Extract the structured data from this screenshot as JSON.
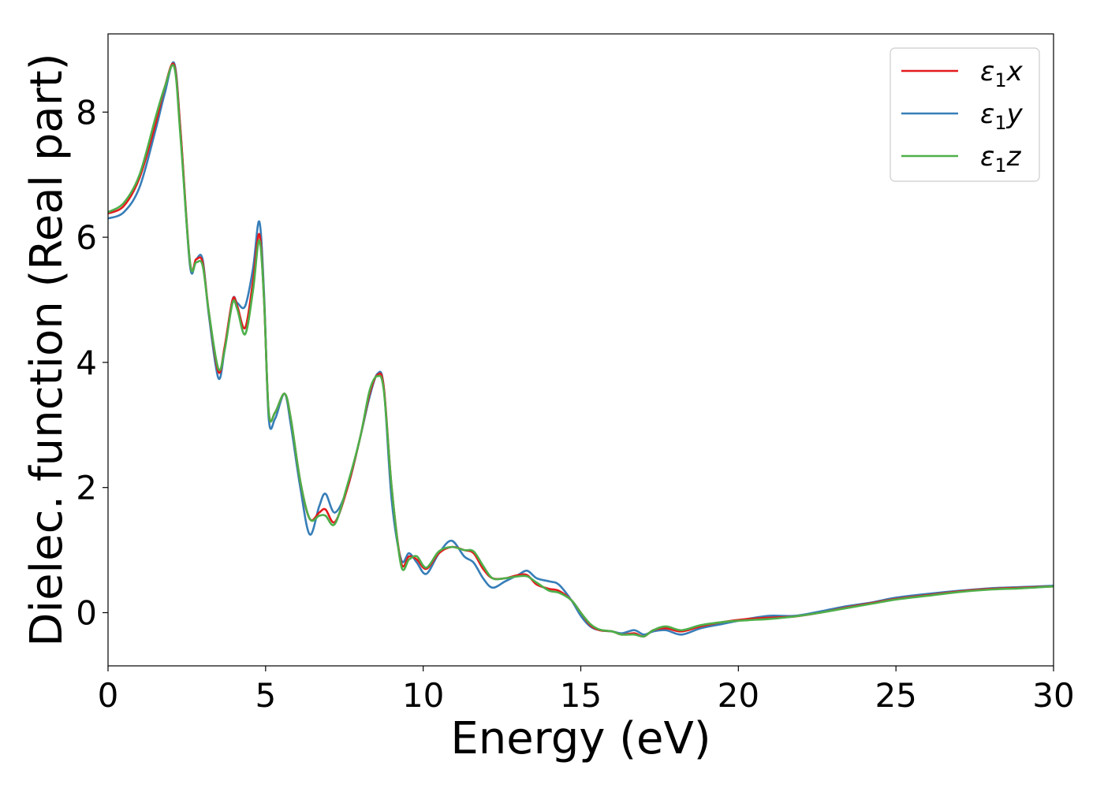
{
  "chart_data": {
    "type": "line",
    "xlabel": "Energy (eV)",
    "ylabel": "Dielec. function (Real part)",
    "xlim": [
      0,
      30
    ],
    "ylim": [
      -0.85,
      9.25
    ],
    "xticks": [
      0,
      5,
      10,
      15,
      20,
      25,
      30
    ],
    "yticks": [
      0,
      2,
      4,
      6,
      8
    ],
    "grid": false,
    "legend_position": "top-right",
    "series": [
      {
        "name": "ε₁x",
        "legend_main": "ε",
        "legend_sub": "1",
        "legend_suffix": "x",
        "color": "#e41a1c",
        "x": [
          0,
          0.5,
          1.0,
          1.5,
          1.8,
          2.1,
          2.3,
          2.6,
          2.8,
          3.0,
          3.2,
          3.5,
          3.7,
          3.95,
          4.1,
          4.35,
          4.6,
          4.8,
          4.95,
          5.1,
          5.3,
          5.6,
          5.8,
          6.1,
          6.4,
          6.7,
          6.9,
          7.2,
          7.6,
          8.0,
          8.3,
          8.55,
          8.75,
          9.0,
          9.3,
          9.55,
          9.8,
          10.1,
          10.5,
          10.9,
          11.3,
          11.6,
          11.9,
          12.2,
          12.6,
          13.0,
          13.3,
          13.6,
          14.0,
          14.3,
          14.7,
          15.0,
          15.3,
          15.6,
          16.0,
          16.3,
          16.7,
          17.0,
          17.3,
          17.7,
          18.2,
          18.8,
          19.5,
          20.3,
          21.0,
          21.8,
          22.6,
          23.4,
          24.2,
          25.0,
          26.0,
          27.0,
          28.0,
          29.0,
          30.0
        ],
        "y": [
          6.38,
          6.5,
          6.95,
          7.8,
          8.4,
          8.75,
          7.7,
          5.6,
          5.65,
          5.6,
          4.8,
          3.85,
          4.25,
          5.0,
          4.9,
          4.55,
          5.3,
          6.05,
          5.0,
          3.2,
          3.2,
          3.5,
          3.1,
          2.1,
          1.5,
          1.6,
          1.65,
          1.45,
          2.0,
          2.8,
          3.5,
          3.8,
          3.6,
          2.0,
          0.8,
          0.9,
          0.85,
          0.7,
          0.95,
          1.05,
          1.0,
          0.95,
          0.7,
          0.55,
          0.55,
          0.6,
          0.6,
          0.45,
          0.38,
          0.35,
          0.2,
          0.0,
          -0.2,
          -0.28,
          -0.3,
          -0.35,
          -0.33,
          -0.38,
          -0.28,
          -0.25,
          -0.3,
          -0.22,
          -0.15,
          -0.1,
          -0.08,
          -0.06,
          0.0,
          0.08,
          0.15,
          0.22,
          0.28,
          0.34,
          0.38,
          0.4,
          0.42
        ]
      },
      {
        "name": "ε₁y",
        "legend_main": "ε",
        "legend_sub": "1",
        "legend_suffix": "y",
        "color": "#377eb8",
        "x": [
          0,
          0.5,
          1.0,
          1.5,
          1.8,
          2.1,
          2.3,
          2.6,
          2.8,
          3.0,
          3.2,
          3.5,
          3.7,
          3.95,
          4.1,
          4.35,
          4.6,
          4.8,
          4.95,
          5.1,
          5.3,
          5.6,
          5.8,
          6.1,
          6.4,
          6.7,
          6.9,
          7.2,
          7.6,
          8.0,
          8.3,
          8.55,
          8.75,
          9.0,
          9.3,
          9.55,
          9.8,
          10.1,
          10.5,
          10.9,
          11.3,
          11.6,
          11.9,
          12.2,
          12.6,
          13.0,
          13.3,
          13.6,
          14.0,
          14.3,
          14.7,
          15.0,
          15.3,
          15.6,
          16.0,
          16.3,
          16.7,
          17.0,
          17.3,
          17.7,
          18.2,
          18.8,
          19.5,
          20.3,
          21.0,
          21.8,
          22.6,
          23.4,
          24.2,
          25.0,
          26.0,
          27.0,
          28.0,
          29.0,
          30.0
        ],
        "y": [
          6.3,
          6.4,
          6.8,
          7.7,
          8.3,
          8.78,
          7.7,
          5.55,
          5.65,
          5.65,
          4.75,
          3.75,
          4.2,
          5.0,
          4.95,
          4.9,
          5.5,
          6.25,
          5.1,
          3.1,
          3.1,
          3.5,
          3.0,
          2.0,
          1.25,
          1.7,
          1.9,
          1.6,
          2.0,
          2.8,
          3.45,
          3.82,
          3.6,
          1.8,
          0.85,
          0.95,
          0.8,
          0.62,
          0.95,
          1.15,
          0.9,
          0.8,
          0.55,
          0.4,
          0.5,
          0.6,
          0.67,
          0.55,
          0.5,
          0.45,
          0.2,
          -0.05,
          -0.22,
          -0.28,
          -0.3,
          -0.33,
          -0.28,
          -0.35,
          -0.3,
          -0.28,
          -0.35,
          -0.25,
          -0.18,
          -0.1,
          -0.05,
          -0.05,
          0.02,
          0.1,
          0.16,
          0.24,
          0.3,
          0.35,
          0.39,
          0.41,
          0.43
        ]
      },
      {
        "name": "ε₁z",
        "legend_main": "ε",
        "legend_sub": "1",
        "legend_suffix": "z",
        "color": "#4daf4a",
        "x": [
          0,
          0.5,
          1.0,
          1.5,
          1.8,
          2.1,
          2.3,
          2.6,
          2.8,
          3.0,
          3.2,
          3.5,
          3.7,
          3.95,
          4.1,
          4.35,
          4.6,
          4.8,
          4.95,
          5.1,
          5.3,
          5.6,
          5.8,
          6.1,
          6.4,
          6.7,
          6.9,
          7.2,
          7.6,
          8.0,
          8.3,
          8.55,
          8.75,
          9.0,
          9.3,
          9.55,
          9.8,
          10.1,
          10.5,
          10.9,
          11.3,
          11.6,
          11.9,
          12.2,
          12.6,
          13.0,
          13.3,
          13.6,
          14.0,
          14.3,
          14.7,
          15.0,
          15.3,
          15.6,
          16.0,
          16.3,
          16.7,
          17.0,
          17.3,
          17.7,
          18.2,
          18.8,
          19.5,
          20.3,
          21.0,
          21.8,
          22.6,
          23.4,
          24.2,
          25.0,
          26.0,
          27.0,
          28.0,
          29.0,
          30.0
        ],
        "y": [
          6.4,
          6.55,
          7.0,
          7.9,
          8.4,
          8.72,
          7.6,
          5.6,
          5.6,
          5.55,
          4.8,
          3.9,
          4.2,
          4.95,
          4.85,
          4.45,
          5.15,
          5.95,
          5.0,
          3.2,
          3.2,
          3.5,
          3.1,
          2.1,
          1.5,
          1.55,
          1.55,
          1.42,
          2.05,
          2.8,
          3.55,
          3.78,
          3.55,
          2.0,
          0.75,
          0.85,
          0.9,
          0.72,
          0.98,
          1.05,
          1.0,
          0.98,
          0.75,
          0.55,
          0.55,
          0.58,
          0.58,
          0.48,
          0.35,
          0.32,
          0.2,
          0.0,
          -0.18,
          -0.27,
          -0.3,
          -0.35,
          -0.35,
          -0.38,
          -0.28,
          -0.22,
          -0.28,
          -0.2,
          -0.15,
          -0.12,
          -0.1,
          -0.06,
          0.0,
          0.07,
          0.14,
          0.21,
          0.27,
          0.33,
          0.37,
          0.39,
          0.42
        ]
      }
    ]
  }
}
